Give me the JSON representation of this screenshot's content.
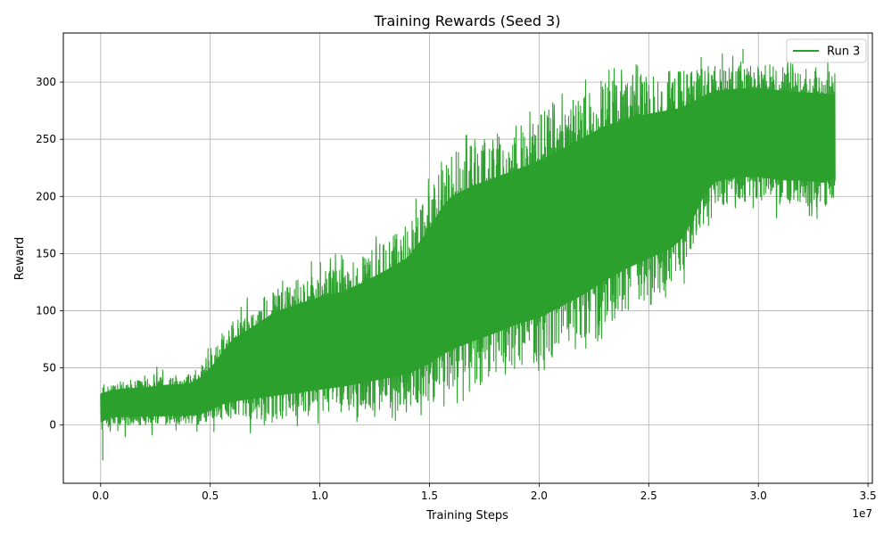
{
  "chart_data": {
    "type": "line",
    "title": "Training Rewards (Seed 3)",
    "xlabel": "Training Steps",
    "ylabel": "Reward",
    "x_offset_label": "1e7",
    "xlim": [
      -0.17,
      3.52
    ],
    "ylim": [
      -51,
      343
    ],
    "x_ticks": [
      0.0,
      0.5,
      1.0,
      1.5,
      2.0,
      2.5,
      3.0,
      3.5
    ],
    "x_tick_labels": [
      "0.0",
      "0.5",
      "1.0",
      "1.5",
      "2.0",
      "2.5",
      "3.0",
      "3.5"
    ],
    "y_ticks": [
      0,
      50,
      100,
      150,
      200,
      250,
      300
    ],
    "y_tick_labels": [
      "0",
      "50",
      "100",
      "150",
      "200",
      "250",
      "300"
    ],
    "grid": true,
    "legend_position": "top-right",
    "series": [
      {
        "name": "Run 3",
        "color": "#2ca02c",
        "x_units": "1e7 steps",
        "envelope": {
          "x": [
            0.0,
            0.05,
            0.1,
            0.2,
            0.3,
            0.4,
            0.45,
            0.5,
            0.55,
            0.6,
            0.7,
            0.8,
            0.9,
            1.0,
            1.1,
            1.2,
            1.3,
            1.4,
            1.45,
            1.5,
            1.55,
            1.6,
            1.7,
            1.8,
            1.9,
            2.0,
            2.1,
            2.2,
            2.3,
            2.4,
            2.5,
            2.6,
            2.65,
            2.7,
            2.75,
            2.8,
            2.9,
            3.0,
            3.1,
            3.2,
            3.3,
            3.35
          ],
          "upper": [
            35,
            37,
            39,
            40,
            43,
            44,
            50,
            60,
            75,
            90,
            105,
            120,
            128,
            135,
            140,
            150,
            162,
            175,
            190,
            205,
            225,
            238,
            248,
            255,
            262,
            270,
            280,
            290,
            300,
            305,
            308,
            310,
            310,
            312,
            313,
            315,
            316,
            317,
            315,
            313,
            312,
            310
          ],
          "lower": [
            -5,
            0,
            0,
            0,
            0,
            0,
            0,
            2,
            5,
            5,
            5,
            5,
            6,
            8,
            10,
            12,
            14,
            16,
            18,
            20,
            24,
            28,
            35,
            42,
            50,
            55,
            65,
            75,
            88,
            100,
            110,
            120,
            130,
            150,
            175,
            190,
            195,
            195,
            192,
            192,
            190,
            195
          ]
        },
        "mean": {
          "x": [
            0.0,
            0.2,
            0.4,
            0.6,
            0.8,
            1.0,
            1.2,
            1.4,
            1.6,
            1.8,
            2.0,
            2.2,
            2.4,
            2.6,
            2.8,
            3.0,
            3.2,
            3.35
          ],
          "y": [
            20,
            22,
            24,
            45,
            60,
            70,
            80,
            95,
            120,
            145,
            165,
            185,
            200,
            220,
            250,
            255,
            255,
            255
          ]
        },
        "extremes": {
          "min": -31,
          "min_x": 0.01,
          "max": 329,
          "max_x": 2.93
        }
      }
    ]
  }
}
